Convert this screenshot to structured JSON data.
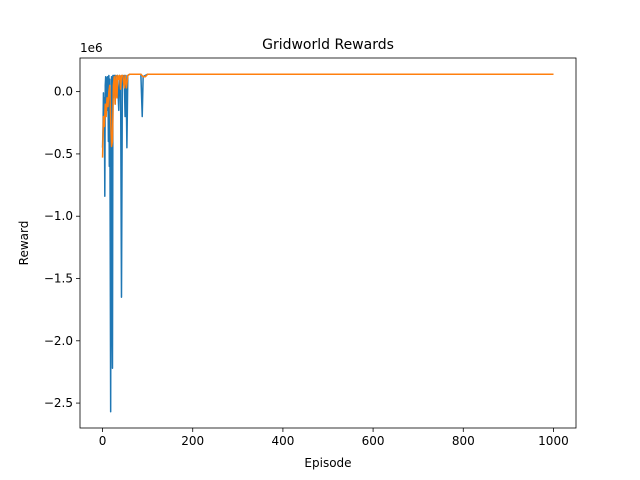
{
  "chart_data": {
    "type": "line",
    "title": "Gridworld Rewards",
    "xlabel": "Episode",
    "ylabel": "Reward",
    "y_scale_label": "1e6",
    "xlim": [
      -50,
      1050
    ],
    "ylim": [
      -2.7,
      0.27
    ],
    "x_ticks": [
      0,
      200,
      400,
      600,
      800,
      1000
    ],
    "x_tick_labels": [
      "0",
      "200",
      "400",
      "600",
      "800",
      "1000"
    ],
    "y_ticks": [
      0.0,
      -0.5,
      -1.0,
      -1.5,
      -2.0,
      -2.5
    ],
    "y_tick_labels": [
      "0.0",
      "−0.5",
      "−1.0",
      "−1.5",
      "−2.0",
      "−2.5"
    ],
    "grid": false,
    "legend": "none",
    "series": [
      {
        "color": "#1f77b4",
        "points": [
          [
            0,
            -0.45
          ],
          [
            1,
            -0.3
          ],
          [
            2,
            -0.01
          ],
          [
            3,
            -0.2
          ],
          [
            4,
            -0.05
          ],
          [
            5,
            -0.84
          ],
          [
            6,
            0.05
          ],
          [
            7,
            0.12
          ],
          [
            8,
            -0.1
          ],
          [
            9,
            0.11
          ],
          [
            10,
            -0.15
          ],
          [
            11,
            0.12
          ],
          [
            12,
            0.05
          ],
          [
            13,
            -0.4
          ],
          [
            14,
            0.13
          ],
          [
            15,
            -0.6
          ],
          [
            16,
            0.1
          ],
          [
            17,
            -1.2
          ],
          [
            18,
            -2.57
          ],
          [
            19,
            -0.3
          ],
          [
            20,
            0.12
          ],
          [
            21,
            -1.8
          ],
          [
            22,
            -2.22
          ],
          [
            23,
            0.13
          ],
          [
            24,
            -0.05
          ],
          [
            25,
            0.13
          ],
          [
            26,
            0.12
          ],
          [
            27,
            0.13
          ],
          [
            28,
            -0.1
          ],
          [
            29,
            0.13
          ],
          [
            30,
            0.12
          ],
          [
            33,
            0.13
          ],
          [
            36,
            -0.15
          ],
          [
            38,
            0.13
          ],
          [
            40,
            0.12
          ],
          [
            42,
            -1.65
          ],
          [
            44,
            0.13
          ],
          [
            46,
            0.12
          ],
          [
            48,
            0.13
          ],
          [
            50,
            -0.2
          ],
          [
            52,
            0.13
          ],
          [
            54,
            -0.45
          ],
          [
            56,
            0.13
          ],
          [
            60,
            0.14
          ],
          [
            65,
            0.14
          ],
          [
            70,
            0.14
          ],
          [
            75,
            0.14
          ],
          [
            80,
            0.14
          ],
          [
            85,
            0.14
          ],
          [
            88,
            -0.2
          ],
          [
            90,
            0.12
          ],
          [
            95,
            0.13
          ],
          [
            100,
            0.14
          ],
          [
            200,
            0.14
          ],
          [
            400,
            0.14
          ],
          [
            600,
            0.14
          ],
          [
            800,
            0.14
          ],
          [
            1000,
            0.14
          ]
        ]
      },
      {
        "color": "#ff7f0e",
        "points": [
          [
            0,
            -0.53
          ],
          [
            2,
            -0.2
          ],
          [
            4,
            -0.28
          ],
          [
            6,
            -0.1
          ],
          [
            8,
            -0.2
          ],
          [
            10,
            -0.05
          ],
          [
            12,
            -0.12
          ],
          [
            14,
            0.0
          ],
          [
            16,
            0.05
          ],
          [
            18,
            -0.22
          ],
          [
            20,
            -0.44
          ],
          [
            22,
            -0.4
          ],
          [
            24,
            0.05
          ],
          [
            26,
            0.12
          ],
          [
            28,
            -0.1
          ],
          [
            30,
            0.13
          ],
          [
            32,
            -0.05
          ],
          [
            34,
            0.13
          ],
          [
            36,
            0.1
          ],
          [
            38,
            0.13
          ],
          [
            40,
            0.02
          ],
          [
            42,
            0.13
          ],
          [
            45,
            0.13
          ],
          [
            48,
            0.03
          ],
          [
            50,
            0.13
          ],
          [
            53,
            0.03
          ],
          [
            56,
            0.13
          ],
          [
            60,
            0.14
          ],
          [
            70,
            0.14
          ],
          [
            80,
            0.14
          ],
          [
            85,
            0.14
          ],
          [
            90,
            0.12
          ],
          [
            95,
            0.12
          ],
          [
            100,
            0.14
          ],
          [
            200,
            0.14
          ],
          [
            400,
            0.14
          ],
          [
            600,
            0.14
          ],
          [
            800,
            0.14
          ],
          [
            1000,
            0.14
          ]
        ]
      }
    ]
  }
}
